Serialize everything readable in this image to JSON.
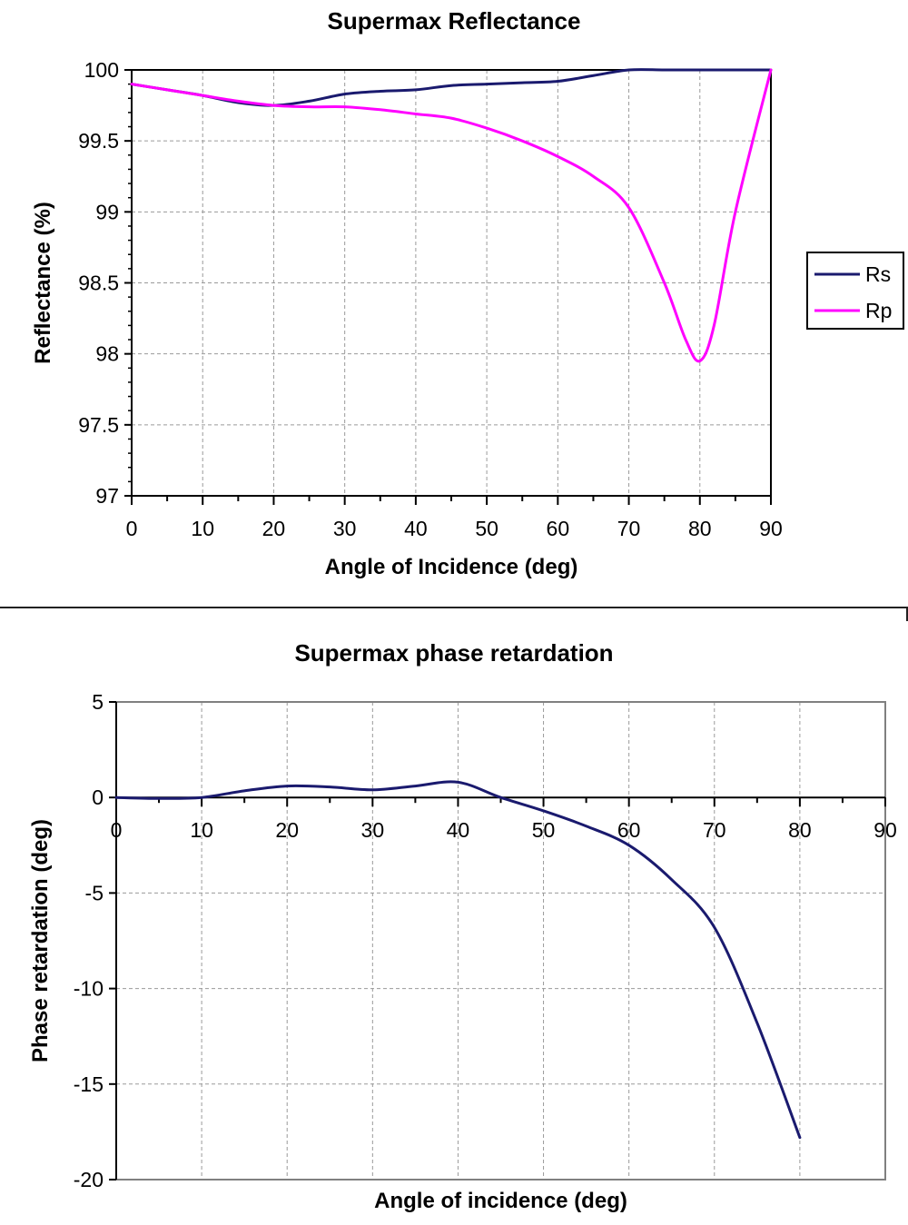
{
  "chart_data": [
    {
      "type": "line",
      "title": "Supermax Reflectance",
      "xlabel": "Angle of Incidence (deg)",
      "ylabel": "Reflectance (%)",
      "xlim": [
        0,
        90
      ],
      "ylim": [
        97,
        100
      ],
      "x_ticks": [
        "0",
        "10",
        "20",
        "30",
        "40",
        "50",
        "60",
        "70",
        "80",
        "90"
      ],
      "y_ticks": [
        "97",
        "97.5",
        "98",
        "98.5",
        "99",
        "99.5",
        "100"
      ],
      "grid": true,
      "legend": "right",
      "series": [
        {
          "name": "Rs",
          "color": "#1a1a6e",
          "x": [
            0,
            5,
            10,
            15,
            20,
            25,
            30,
            35,
            40,
            45,
            50,
            55,
            60,
            65,
            70,
            75,
            80,
            85,
            90
          ],
          "y": [
            99.9,
            99.86,
            99.82,
            99.77,
            99.75,
            99.78,
            99.83,
            99.85,
            99.86,
            99.89,
            99.9,
            99.91,
            99.92,
            99.96,
            100,
            100,
            100,
            100,
            100
          ]
        },
        {
          "name": "Rp",
          "color": "#ff00ff",
          "x": [
            0,
            5,
            10,
            15,
            20,
            25,
            30,
            35,
            40,
            45,
            50,
            55,
            60,
            65,
            70,
            75,
            78,
            80,
            82,
            85,
            90
          ],
          "y": [
            99.9,
            99.86,
            99.82,
            99.78,
            99.75,
            99.74,
            99.74,
            99.72,
            99.69,
            99.66,
            99.59,
            99.5,
            99.39,
            99.25,
            99.03,
            98.5,
            98.1,
            97.95,
            98.2,
            99.0,
            100
          ]
        }
      ]
    },
    {
      "type": "line",
      "title": "Supermax phase retardation",
      "xlabel": "Angle of incidence (deg)",
      "ylabel": "Phase retardation (deg)",
      "xlim": [
        0,
        90
      ],
      "ylim": [
        -20,
        5
      ],
      "x_ticks": [
        "0",
        "10",
        "20",
        "30",
        "40",
        "50",
        "60",
        "70",
        "80",
        "90"
      ],
      "y_ticks": [
        "5",
        "0",
        "-5",
        "-10",
        "-15",
        "-20"
      ],
      "grid": true,
      "series": [
        {
          "color": "#1a1a6e",
          "x": [
            0,
            5,
            10,
            15,
            20,
            25,
            30,
            35,
            40,
            45,
            50,
            55,
            60,
            65,
            70,
            75,
            80
          ],
          "y": [
            0,
            -0.05,
            0,
            0.35,
            0.6,
            0.55,
            0.4,
            0.6,
            0.8,
            0,
            -0.7,
            -1.5,
            -2.5,
            -4.3,
            -6.8,
            -11.8,
            -17.8
          ]
        }
      ]
    }
  ]
}
